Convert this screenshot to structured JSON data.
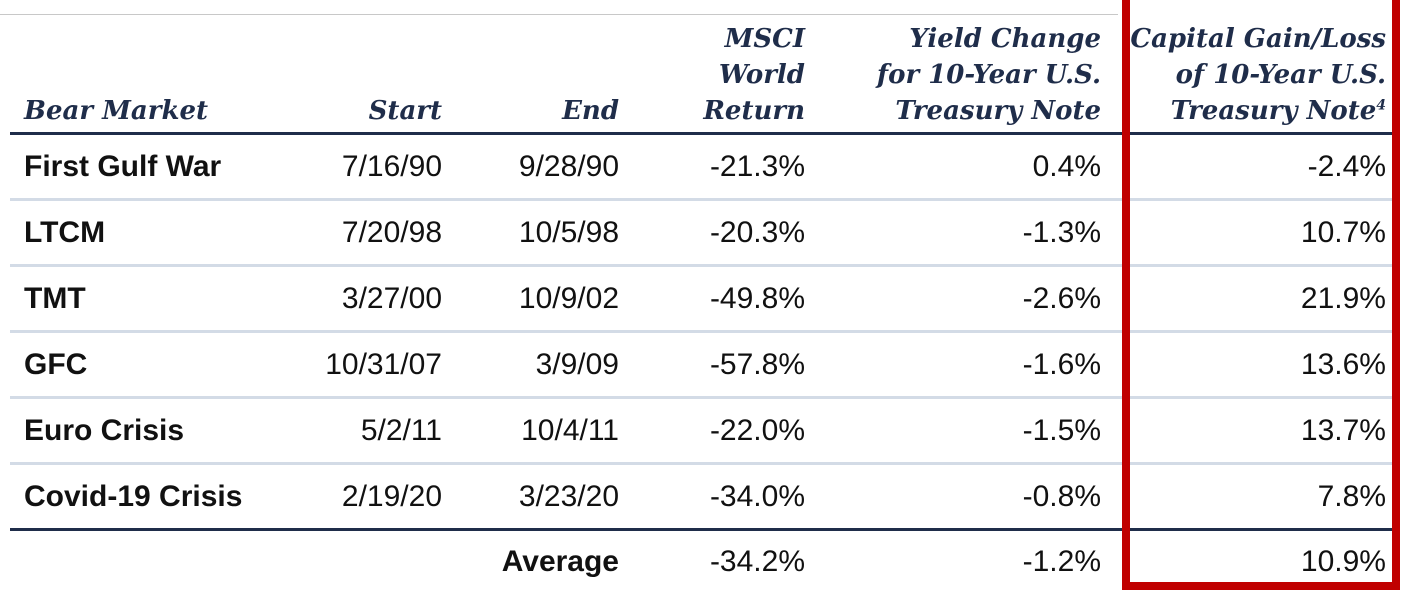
{
  "table": {
    "headers": {
      "bear_market": "Bear Market",
      "start": "Start",
      "end": "End",
      "msci": [
        "MSCI",
        "World",
        "Return"
      ],
      "yield_change": [
        "Yield Change",
        "for 10-Year U.S.",
        "Treasury Note"
      ],
      "capital_gain": [
        "Capital Gain/Loss",
        "of 10-Year U.S.",
        "Treasury Note"
      ],
      "capital_gain_footnote": "4"
    },
    "rows": [
      {
        "name": "First Gulf War",
        "start": "7/16/90",
        "end": "9/28/90",
        "msci": "-21.3%",
        "yield": "0.4%",
        "capital": "-2.4%"
      },
      {
        "name": "LTCM",
        "start": "7/20/98",
        "end": "10/5/98",
        "msci": "-20.3%",
        "yield": "-1.3%",
        "capital": "10.7%"
      },
      {
        "name": "TMT",
        "start": "3/27/00",
        "end": "10/9/02",
        "msci": "-49.8%",
        "yield": "-2.6%",
        "capital": "21.9%"
      },
      {
        "name": "GFC",
        "start": "10/31/07",
        "end": "3/9/09",
        "msci": "-57.8%",
        "yield": "-1.6%",
        "capital": "13.6%"
      },
      {
        "name": "Euro Crisis",
        "start": "5/2/11",
        "end": "10/4/11",
        "msci": "-22.0%",
        "yield": "-1.5%",
        "capital": "13.7%"
      },
      {
        "name": "Covid-19 Crisis",
        "start": "2/19/20",
        "end": "3/23/20",
        "msci": "-34.0%",
        "yield": "-0.8%",
        "capital": "7.8%"
      }
    ],
    "average": {
      "label": "Average",
      "msci": "-34.2%",
      "yield": "-1.2%",
      "capital": "10.9%"
    }
  },
  "colors": {
    "header_text": "#1f2d4a",
    "row_divider": "#d3dbe6",
    "highlight_border": "#c00000"
  }
}
